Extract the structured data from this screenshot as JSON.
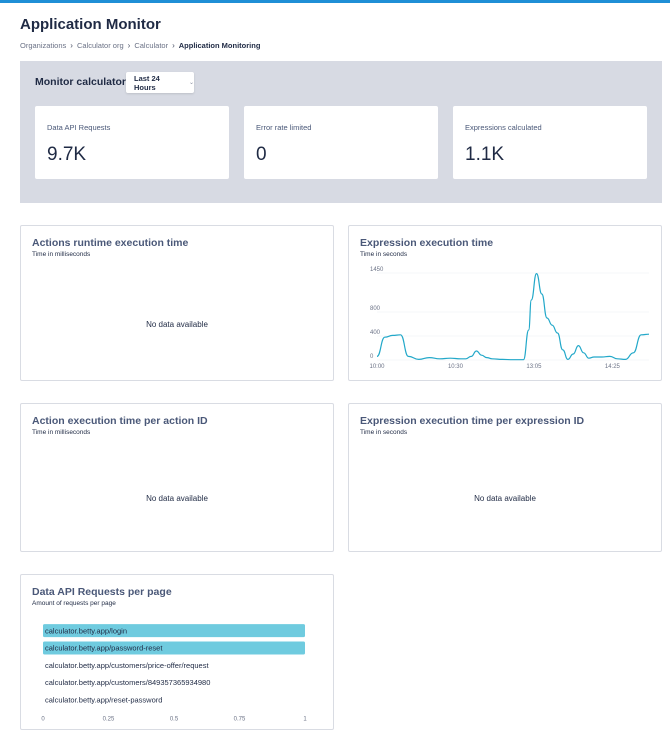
{
  "page": {
    "title": "Application Monitor",
    "breadcrumb": [
      "Organizations",
      "Calculator org",
      "Calculator",
      "Application Monitoring"
    ]
  },
  "summary": {
    "title": "Monitor calculator",
    "range_label": "Last 24 Hours",
    "cards": [
      {
        "label": "Data API Requests",
        "value": "9.7K"
      },
      {
        "label": "Error rate limited",
        "value": "0"
      },
      {
        "label": "Expressions calculated",
        "value": "1.1K"
      }
    ]
  },
  "panels": {
    "actions_runtime": {
      "title": "Actions runtime execution time",
      "subtitle": "Time in milliseconds",
      "empty_text": "No data available"
    },
    "expression_time": {
      "title": "Expression execution time",
      "subtitle": "Time in seconds"
    },
    "action_per_id": {
      "title": "Action execution time per action ID",
      "subtitle": "Time in milliseconds",
      "empty_text": "No data available"
    },
    "expression_per_id": {
      "title": "Expression execution time per expression ID",
      "subtitle": "Time in seconds",
      "empty_text": "No data available"
    },
    "requests_per_page": {
      "title": "Data API Requests per page",
      "subtitle": "Amount of requests per page"
    }
  },
  "chart_data": [
    {
      "type": "line",
      "title": "Expression execution time",
      "ylabel": "Time in seconds",
      "yticks": [
        0,
        400,
        800,
        1450
      ],
      "ylim": [
        0,
        1450
      ],
      "xticks": [
        {
          "label": "10:00",
          "x": 0
        },
        {
          "label": "10:30",
          "x": 30
        },
        {
          "label": "13:05",
          "x": 60
        },
        {
          "label": "14:25",
          "x": 90
        }
      ],
      "xlim": [
        0,
        104
      ],
      "color": "#22a8c9",
      "series": [
        {
          "x": [
            0,
            3,
            6,
            9,
            12,
            16,
            20,
            24,
            28,
            32,
            34,
            36,
            38,
            40,
            42,
            44,
            48,
            52,
            56,
            58,
            59,
            61,
            63,
            65,
            67,
            69,
            71,
            73,
            75,
            77,
            79,
            81,
            83,
            86,
            89,
            92,
            95,
            98,
            101,
            104
          ],
          "y": [
            60,
            380,
            410,
            420,
            60,
            10,
            40,
            20,
            30,
            20,
            20,
            60,
            150,
            80,
            40,
            20,
            10,
            5,
            5,
            500,
            1000,
            1440,
            1100,
            700,
            580,
            450,
            170,
            10,
            100,
            240,
            120,
            30,
            50,
            50,
            60,
            20,
            10,
            120,
            420,
            430
          ]
        }
      ]
    },
    {
      "type": "bar",
      "title": "Data API Requests per page",
      "subtitle": "Amount of requests per page",
      "orientation": "horizontal",
      "categories": [
        "calculator.betty.app/login",
        "calculator.betty.app/password-reset",
        "calculator.betty.app/customers/price-offer/request",
        "calculator.betty.app/customers/849357365934980",
        "calculator.betty.app/reset-password"
      ],
      "values": [
        1,
        1,
        0,
        0,
        0
      ],
      "xticks": [
        "0",
        "0.25",
        "0.5",
        "0.75",
        "1"
      ],
      "xlim": [
        0,
        1
      ],
      "color": "#6fcbdf"
    }
  ]
}
